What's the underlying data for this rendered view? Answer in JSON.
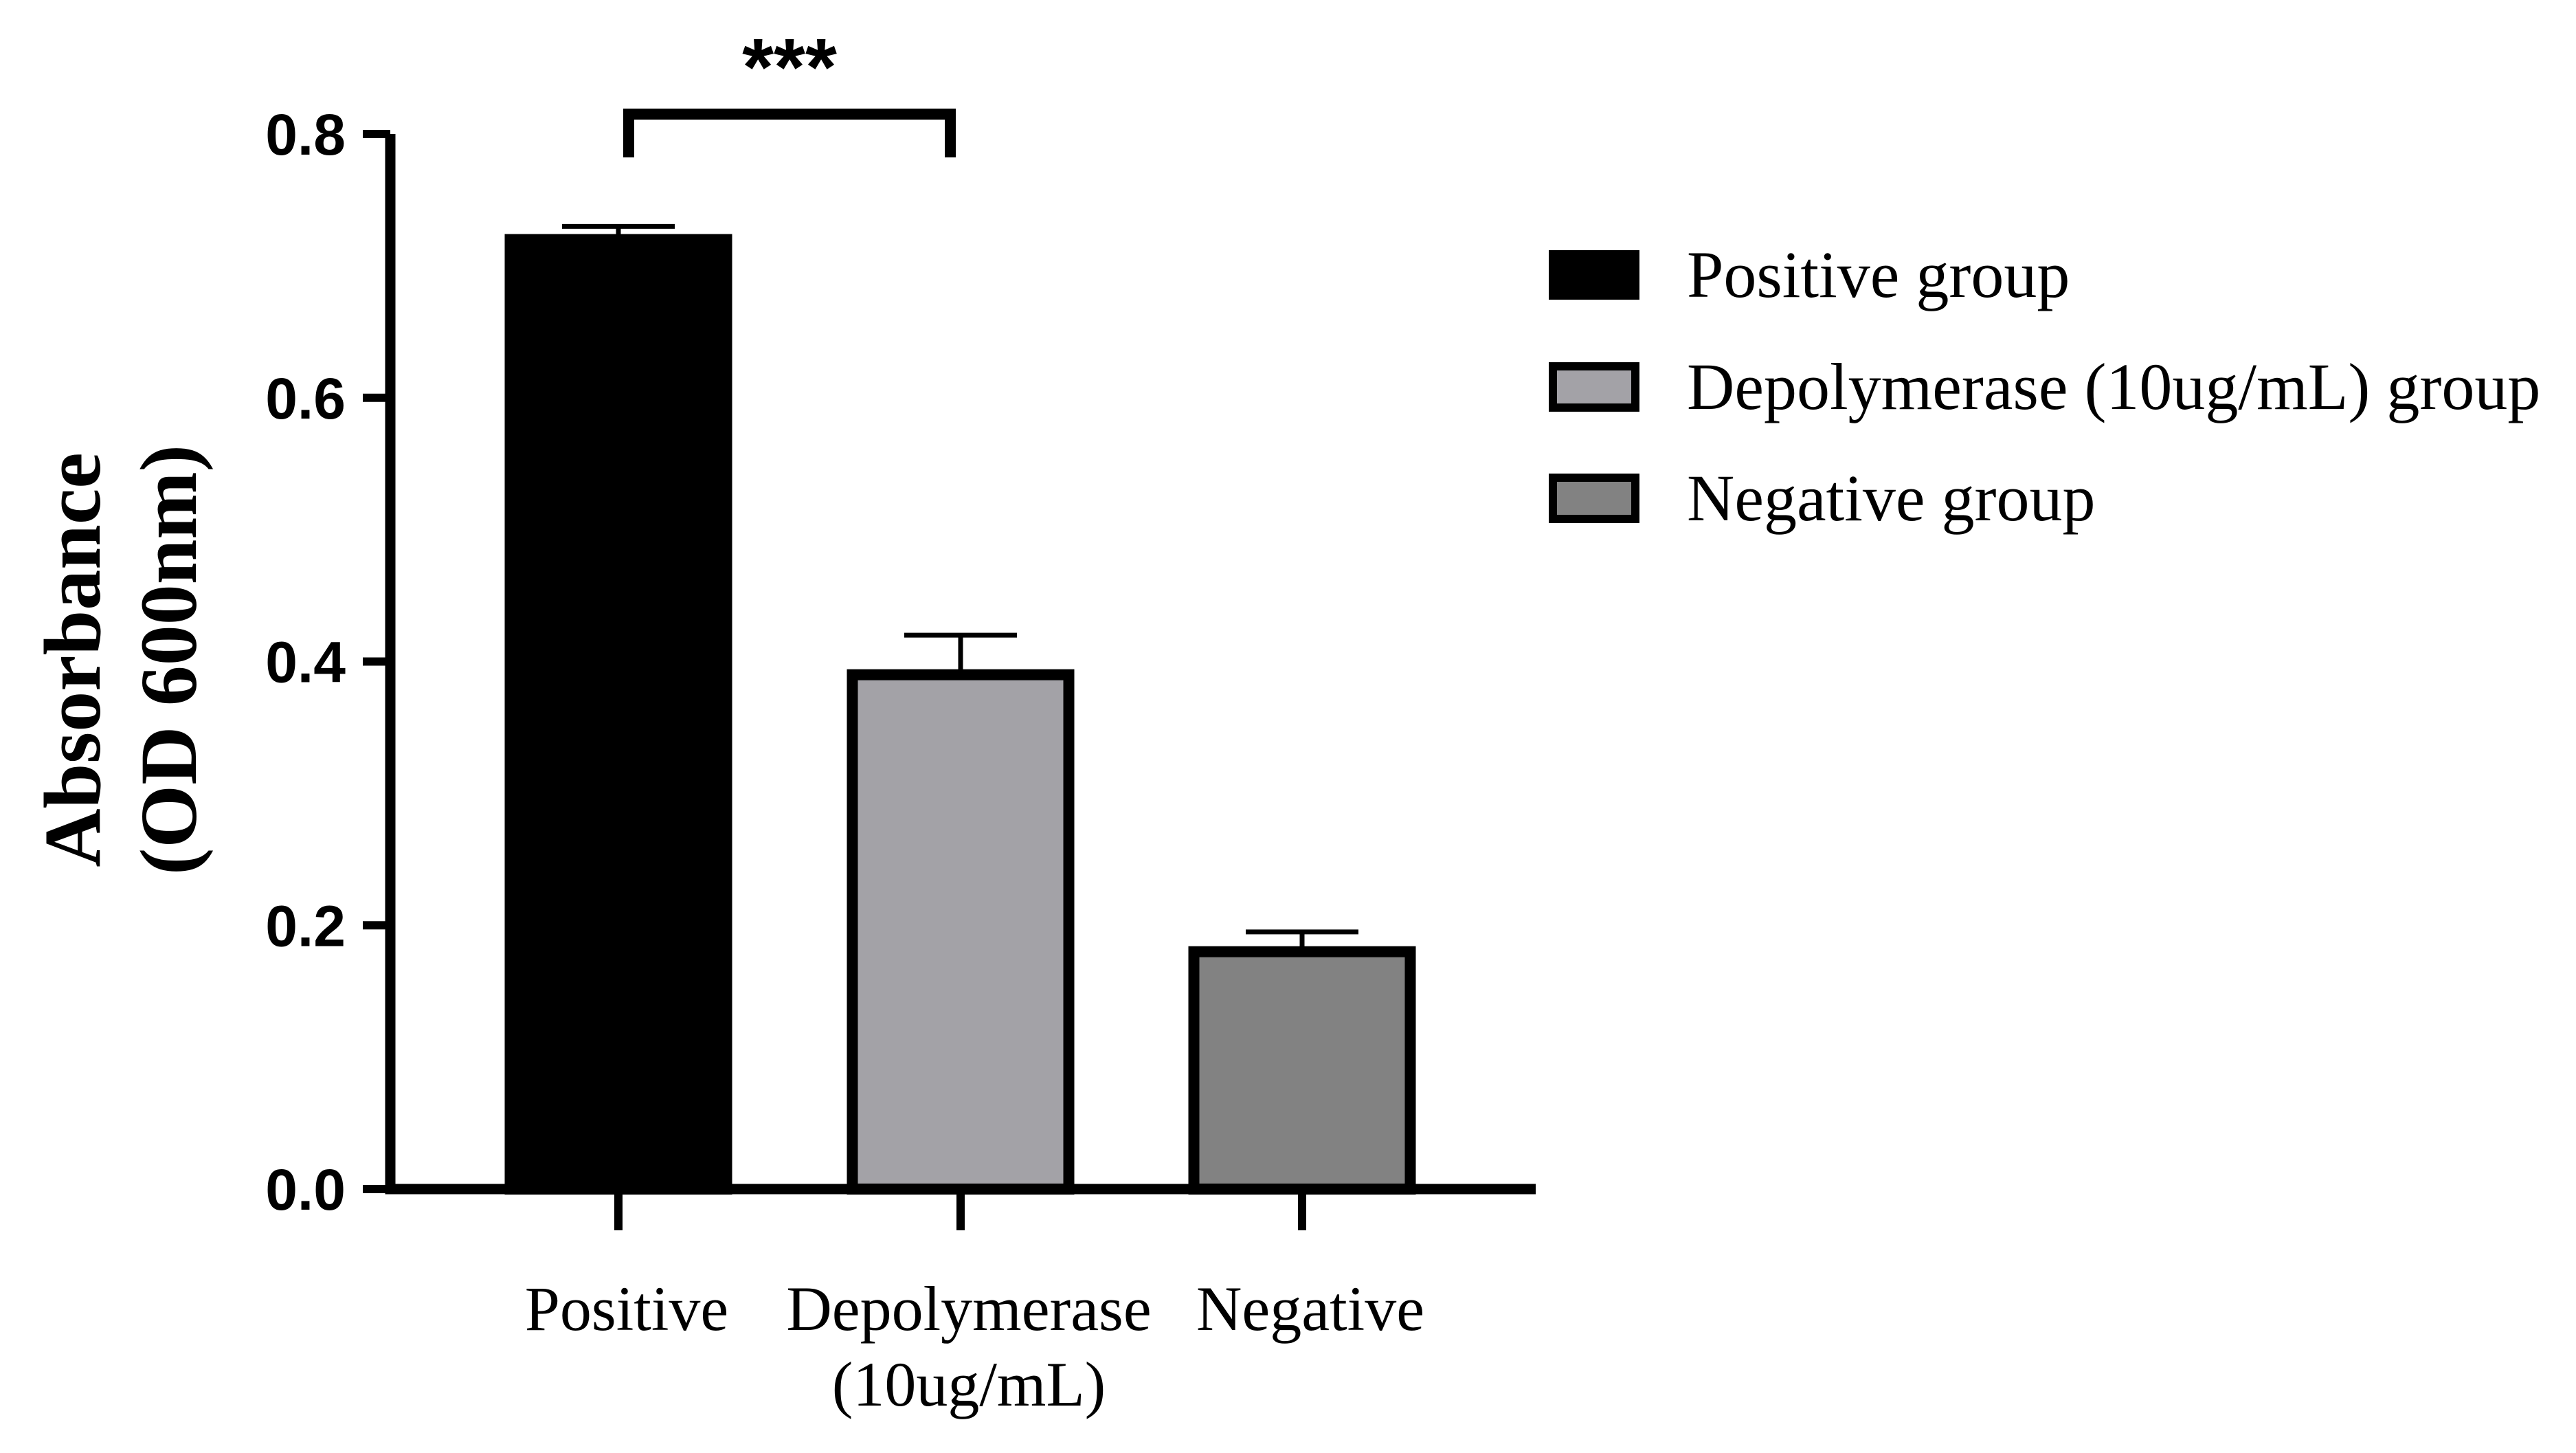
{
  "chart_data": {
    "type": "bar",
    "categories": [
      "Positive",
      "Depolymerase\n(10ug/mL)",
      "Negative"
    ],
    "values": [
      0.72,
      0.39,
      0.18
    ],
    "errors": [
      0.01,
      0.03,
      0.015
    ],
    "colors": [
      "#000000",
      "#a3a2a7",
      "#828282"
    ],
    "ylim": [
      0,
      0.8
    ],
    "yticks": [
      "0.0",
      "0.2",
      "0.4",
      "0.6",
      "0.8"
    ],
    "ytick_values": [
      0,
      0.2,
      0.4,
      0.6,
      0.8
    ],
    "ylabel_line1": "Absorbance",
    "ylabel_line2": "(OD 600nm)",
    "xlabel": "",
    "title": "",
    "significance": {
      "label": "***",
      "between": [
        0,
        1
      ]
    },
    "legend": [
      {
        "label": "Positive group",
        "color": "#000000"
      },
      {
        "label": "Depolymerase (10ug/mL) group",
        "color": "#a3a2a7"
      },
      {
        "label": "Negative group",
        "color": "#828282"
      }
    ],
    "legend_position": "right"
  }
}
